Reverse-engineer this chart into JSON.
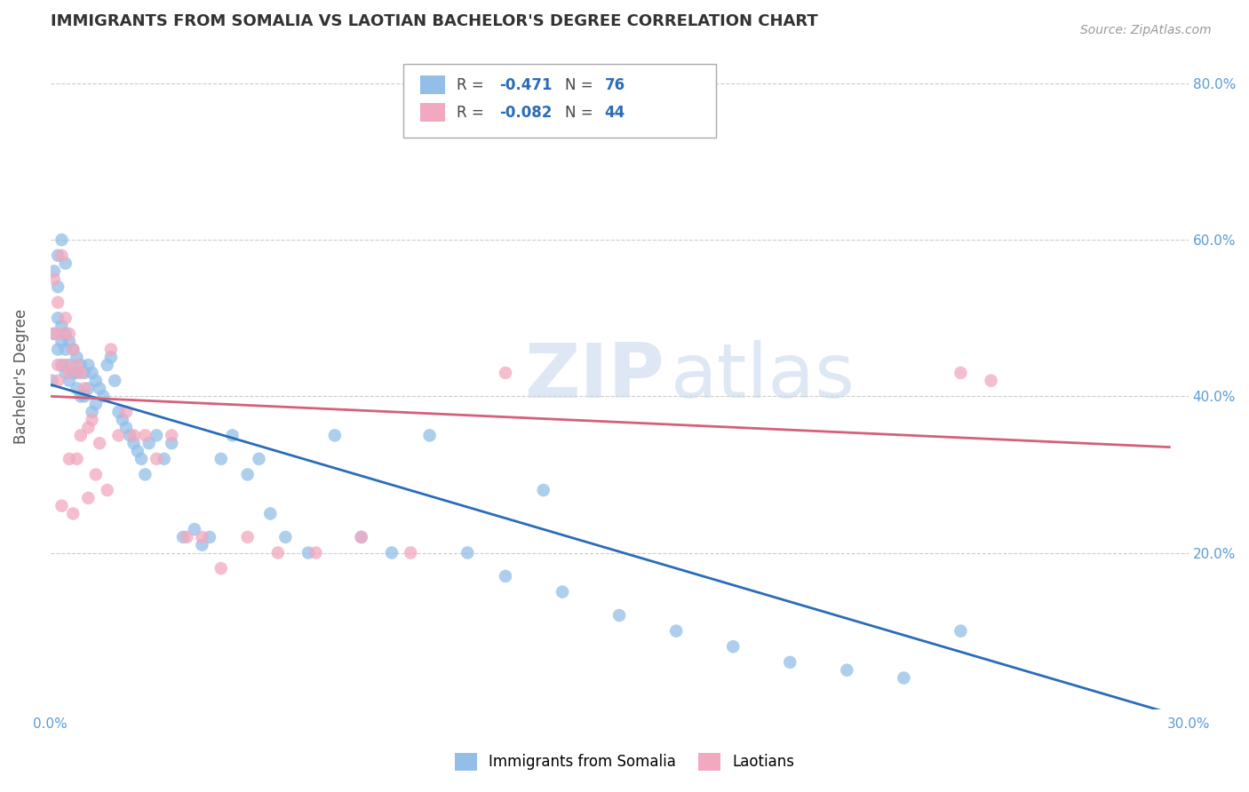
{
  "title": "IMMIGRANTS FROM SOMALIA VS LAOTIAN BACHELOR'S DEGREE CORRELATION CHART",
  "source": "Source: ZipAtlas.com",
  "ylabel": "Bachelor's Degree",
  "xlim": [
    0.0,
    0.3
  ],
  "ylim": [
    0.0,
    0.85
  ],
  "x_ticks": [
    0.0,
    0.05,
    0.1,
    0.15,
    0.2,
    0.25,
    0.3
  ],
  "x_tick_labels": [
    "0.0%",
    "",
    "",
    "",
    "",
    "",
    "30.0%"
  ],
  "y_ticks": [
    0.0,
    0.2,
    0.4,
    0.6,
    0.8
  ],
  "y_tick_labels": [
    "",
    "20.0%",
    "40.0%",
    "60.0%",
    "80.0%"
  ],
  "legend_label1": "Immigrants from Somalia",
  "legend_label2": "Laotians",
  "color_blue": "#92BEE8",
  "color_pink": "#F2A8BE",
  "line_color_blue": "#2B6CB8",
  "line_color_pink": "#D4607A",
  "watermark_zip": "ZIP",
  "watermark_atlas": "atlas",
  "background_color": "#ffffff",
  "grid_color": "#cccccc",
  "somalia_x": [
    0.0005,
    0.001,
    0.001,
    0.002,
    0.002,
    0.002,
    0.003,
    0.003,
    0.003,
    0.004,
    0.004,
    0.004,
    0.005,
    0.005,
    0.005,
    0.006,
    0.006,
    0.007,
    0.007,
    0.007,
    0.008,
    0.008,
    0.009,
    0.009,
    0.01,
    0.01,
    0.011,
    0.011,
    0.012,
    0.012,
    0.013,
    0.014,
    0.015,
    0.016,
    0.017,
    0.018,
    0.019,
    0.02,
    0.021,
    0.022,
    0.023,
    0.024,
    0.025,
    0.026,
    0.028,
    0.03,
    0.032,
    0.035,
    0.038,
    0.04,
    0.042,
    0.045,
    0.048,
    0.052,
    0.055,
    0.058,
    0.062,
    0.068,
    0.075,
    0.082,
    0.09,
    0.1,
    0.11,
    0.12,
    0.135,
    0.15,
    0.165,
    0.18,
    0.195,
    0.21,
    0.225,
    0.24,
    0.002,
    0.003,
    0.004,
    0.13
  ],
  "somalia_y": [
    0.42,
    0.56,
    0.48,
    0.54,
    0.5,
    0.46,
    0.49,
    0.47,
    0.44,
    0.48,
    0.46,
    0.43,
    0.47,
    0.44,
    0.42,
    0.46,
    0.43,
    0.45,
    0.43,
    0.41,
    0.44,
    0.4,
    0.43,
    0.4,
    0.44,
    0.41,
    0.43,
    0.38,
    0.42,
    0.39,
    0.41,
    0.4,
    0.44,
    0.45,
    0.42,
    0.38,
    0.37,
    0.36,
    0.35,
    0.34,
    0.33,
    0.32,
    0.3,
    0.34,
    0.35,
    0.32,
    0.34,
    0.22,
    0.23,
    0.21,
    0.22,
    0.32,
    0.35,
    0.3,
    0.32,
    0.25,
    0.22,
    0.2,
    0.35,
    0.22,
    0.2,
    0.35,
    0.2,
    0.17,
    0.15,
    0.12,
    0.1,
    0.08,
    0.06,
    0.05,
    0.04,
    0.1,
    0.58,
    0.6,
    0.57,
    0.28
  ],
  "laotian_x": [
    0.001,
    0.001,
    0.002,
    0.002,
    0.003,
    0.003,
    0.004,
    0.004,
    0.005,
    0.005,
    0.006,
    0.007,
    0.008,
    0.008,
    0.009,
    0.01,
    0.011,
    0.012,
    0.013,
    0.015,
    0.016,
    0.018,
    0.02,
    0.022,
    0.025,
    0.028,
    0.032,
    0.036,
    0.04,
    0.045,
    0.052,
    0.06,
    0.07,
    0.082,
    0.095,
    0.12,
    0.24,
    0.248,
    0.002,
    0.003,
    0.005,
    0.006,
    0.007,
    0.01
  ],
  "laotian_y": [
    0.55,
    0.48,
    0.52,
    0.44,
    0.58,
    0.48,
    0.5,
    0.44,
    0.48,
    0.43,
    0.46,
    0.44,
    0.43,
    0.35,
    0.41,
    0.36,
    0.37,
    0.3,
    0.34,
    0.28,
    0.46,
    0.35,
    0.38,
    0.35,
    0.35,
    0.32,
    0.35,
    0.22,
    0.22,
    0.18,
    0.22,
    0.2,
    0.2,
    0.22,
    0.2,
    0.43,
    0.43,
    0.42,
    0.42,
    0.26,
    0.32,
    0.25,
    0.32,
    0.27
  ],
  "somalia_trend_x": [
    0.0,
    0.295
  ],
  "somalia_trend_y": [
    0.415,
    -0.005
  ],
  "laotian_trend_x": [
    0.0,
    0.295
  ],
  "laotian_trend_y": [
    0.4,
    0.335
  ]
}
